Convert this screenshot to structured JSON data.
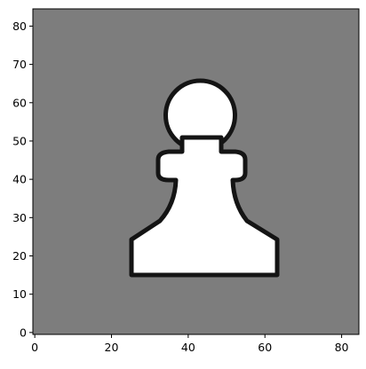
{
  "chart_data": {
    "type": "heatmap",
    "title": "",
    "xlabel": "",
    "ylabel": "",
    "image_size": [
      85,
      85
    ],
    "xlim": [
      -0.5,
      84.5
    ],
    "ylim": [
      84.5,
      -0.5
    ],
    "xticks": [
      0,
      20,
      40,
      60,
      80
    ],
    "yticks": [
      0,
      10,
      20,
      30,
      40,
      50,
      60,
      70,
      80
    ],
    "grid": false,
    "colors": {
      "background": "#7d7d7d",
      "piece_fill": "#ffffff",
      "piece_outline": "#141414"
    },
    "content": "white chess pawn silhouette on grey background"
  }
}
